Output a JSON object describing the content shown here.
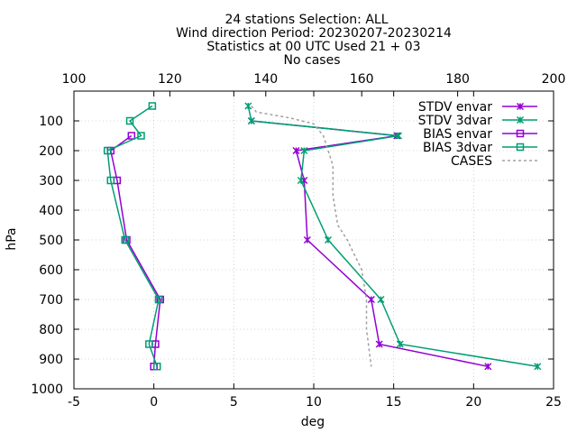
{
  "chart_data": {
    "type": "line",
    "title_lines": [
      "24 stations Selection: ALL",
      "Wind direction  Period: 20230207-20230214",
      "Statistics at 00 UTC  Used 21 + 03",
      "No cases"
    ],
    "xlabel": "deg",
    "ylabel": "hPa",
    "xlim": [
      -5,
      25
    ],
    "ylim": [
      1000,
      0
    ],
    "x2lim": [
      100,
      200
    ],
    "xticks": [
      "-5",
      "0",
      "5",
      "10",
      "15",
      "20",
      "25"
    ],
    "yticks": [
      "100",
      "200",
      "300",
      "400",
      "500",
      "600",
      "700",
      "800",
      "900",
      "1000"
    ],
    "x2ticks": [
      "100",
      "120",
      "140",
      "160",
      "180",
      "200"
    ],
    "legend_position": "top-right",
    "series": [
      {
        "name": "STDV envar",
        "color": "#9400d3",
        "marker": "x-star",
        "axis": "x1",
        "points": [
          [
            6.1,
            100
          ],
          [
            15.2,
            150
          ],
          [
            8.9,
            200
          ],
          [
            9.4,
            300
          ],
          [
            9.6,
            500
          ],
          [
            13.6,
            700
          ],
          [
            14.1,
            850
          ],
          [
            20.9,
            925
          ]
        ]
      },
      {
        "name": "STDV 3dvar",
        "color": "#009e73",
        "marker": "x-star",
        "axis": "x1",
        "points": [
          [
            5.9,
            50
          ],
          [
            6.1,
            100
          ],
          [
            15.3,
            150
          ],
          [
            9.4,
            200
          ],
          [
            9.2,
            300
          ],
          [
            10.9,
            500
          ],
          [
            14.2,
            700
          ],
          [
            15.4,
            850
          ],
          [
            24.0,
            925
          ]
        ]
      },
      {
        "name": "BIAS envar",
        "color": "#9400d3",
        "marker": "square",
        "axis": "x1",
        "points": [
          [
            -1.4,
            150
          ],
          [
            -2.7,
            200
          ],
          [
            -2.3,
            300
          ],
          [
            -1.7,
            500
          ],
          [
            0.4,
            700
          ],
          [
            0.1,
            850
          ],
          [
            0.0,
            925
          ]
        ]
      },
      {
        "name": "BIAS 3dvar",
        "color": "#009e73",
        "marker": "square",
        "axis": "x1",
        "points": [
          [
            -0.1,
            50
          ],
          [
            -1.5,
            100
          ],
          [
            -0.8,
            150
          ],
          [
            -2.9,
            200
          ],
          [
            -2.7,
            300
          ],
          [
            -1.8,
            500
          ],
          [
            0.3,
            700
          ],
          [
            -0.3,
            850
          ],
          [
            0.2,
            925
          ]
        ]
      },
      {
        "name": "CASES",
        "color": "#a0a0a0",
        "marker": "none",
        "dashed": true,
        "axis": "x2",
        "points": [
          [
            137,
            50
          ],
          [
            138,
            70
          ],
          [
            145,
            90
          ],
          [
            150,
            110
          ],
          [
            152,
            150
          ],
          [
            153,
            200
          ],
          [
            154,
            250
          ],
          [
            154,
            350
          ],
          [
            155,
            450
          ],
          [
            157,
            500
          ],
          [
            160,
            600
          ],
          [
            161,
            700
          ],
          [
            161,
            800
          ],
          [
            162,
            925
          ]
        ]
      }
    ]
  }
}
